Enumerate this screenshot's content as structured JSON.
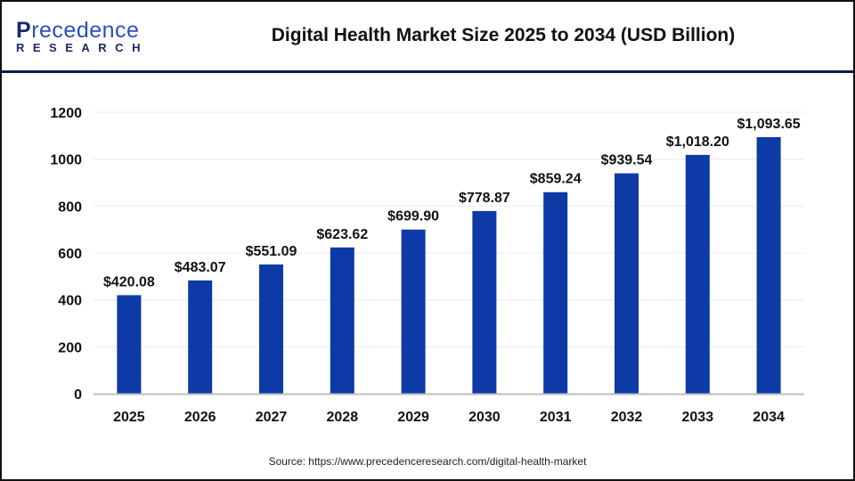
{
  "logo": {
    "text_top_initial": "P",
    "text_top_rest": "recedence",
    "text_bottom": "RESEARCH"
  },
  "chart_data": {
    "type": "bar",
    "title": "Digital Health Market Size 2025 to 2034 (USD Billion)",
    "categories": [
      "2025",
      "2026",
      "2027",
      "2028",
      "2029",
      "2030",
      "2031",
      "2032",
      "2033",
      "2034"
    ],
    "values": [
      420.08,
      483.07,
      551.09,
      623.62,
      699.9,
      778.87,
      859.24,
      939.54,
      1018.2,
      1093.65
    ],
    "data_labels": [
      "$420.08",
      "$483.07",
      "$551.09",
      "$623.62",
      "$699.90",
      "$778.87",
      "$859.24",
      "$939.54",
      "$1,018.20",
      "$1,093.65"
    ],
    "ylim": [
      0,
      1200
    ],
    "yticks": [
      0,
      200,
      400,
      600,
      800,
      1000,
      1200
    ],
    "xlabel": "",
    "ylabel": "",
    "grid": true,
    "bar_color": "#0e3aa8"
  },
  "source": "Source:  https://www.precedenceresearch.com/digital-health-market"
}
